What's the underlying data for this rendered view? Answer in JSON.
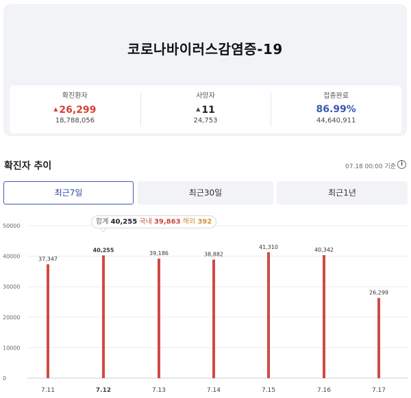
{
  "summary": {
    "title": "코로나바이러스감염증-19",
    "stats": [
      {
        "label": "확진환자",
        "value": "26,299",
        "total": "18,788,056",
        "trend": "up",
        "color": "#d6403a"
      },
      {
        "label": "사망자",
        "value": "11",
        "total": "24,753",
        "trend": "up",
        "color": "#222222"
      },
      {
        "label": "접종완료",
        "value": "86.99%",
        "total": "44,640,911",
        "trend": "",
        "color": "#3b57b5"
      }
    ]
  },
  "trend": {
    "title": "확진자 추이",
    "updated": "07.18 00:00 기준",
    "info_icon": "info-circle-icon"
  },
  "tabs": [
    {
      "label": "최근7일",
      "active": true
    },
    {
      "label": "최근30일",
      "active": false
    },
    {
      "label": "최근1년",
      "active": false
    }
  ],
  "tooltip": {
    "total_label": "합계",
    "total_value": "40,255",
    "domestic_label": "국내",
    "domestic_value": "39,863",
    "abroad_label": "해외",
    "abroad_value": "392"
  },
  "chart_data": {
    "type": "bar",
    "categories": [
      "7.11",
      "7.12",
      "7.13",
      "7.14",
      "7.15",
      "7.16",
      "7.17"
    ],
    "values": [
      37347,
      40255,
      39186,
      38882,
      41310,
      40342,
      26299
    ],
    "value_labels": [
      "37,347",
      "40,255",
      "39,186",
      "38,882",
      "41,310",
      "40,342",
      "26,299"
    ],
    "highlighted_index": 1,
    "ylim": [
      0,
      50000
    ],
    "yticks": [
      0,
      10000,
      20000,
      30000,
      40000,
      50000
    ],
    "ytick_labels": [
      "0",
      "10000",
      "20000",
      "30000",
      "40000",
      "50000"
    ],
    "grid": true,
    "bar_color": "#cf4a45"
  }
}
